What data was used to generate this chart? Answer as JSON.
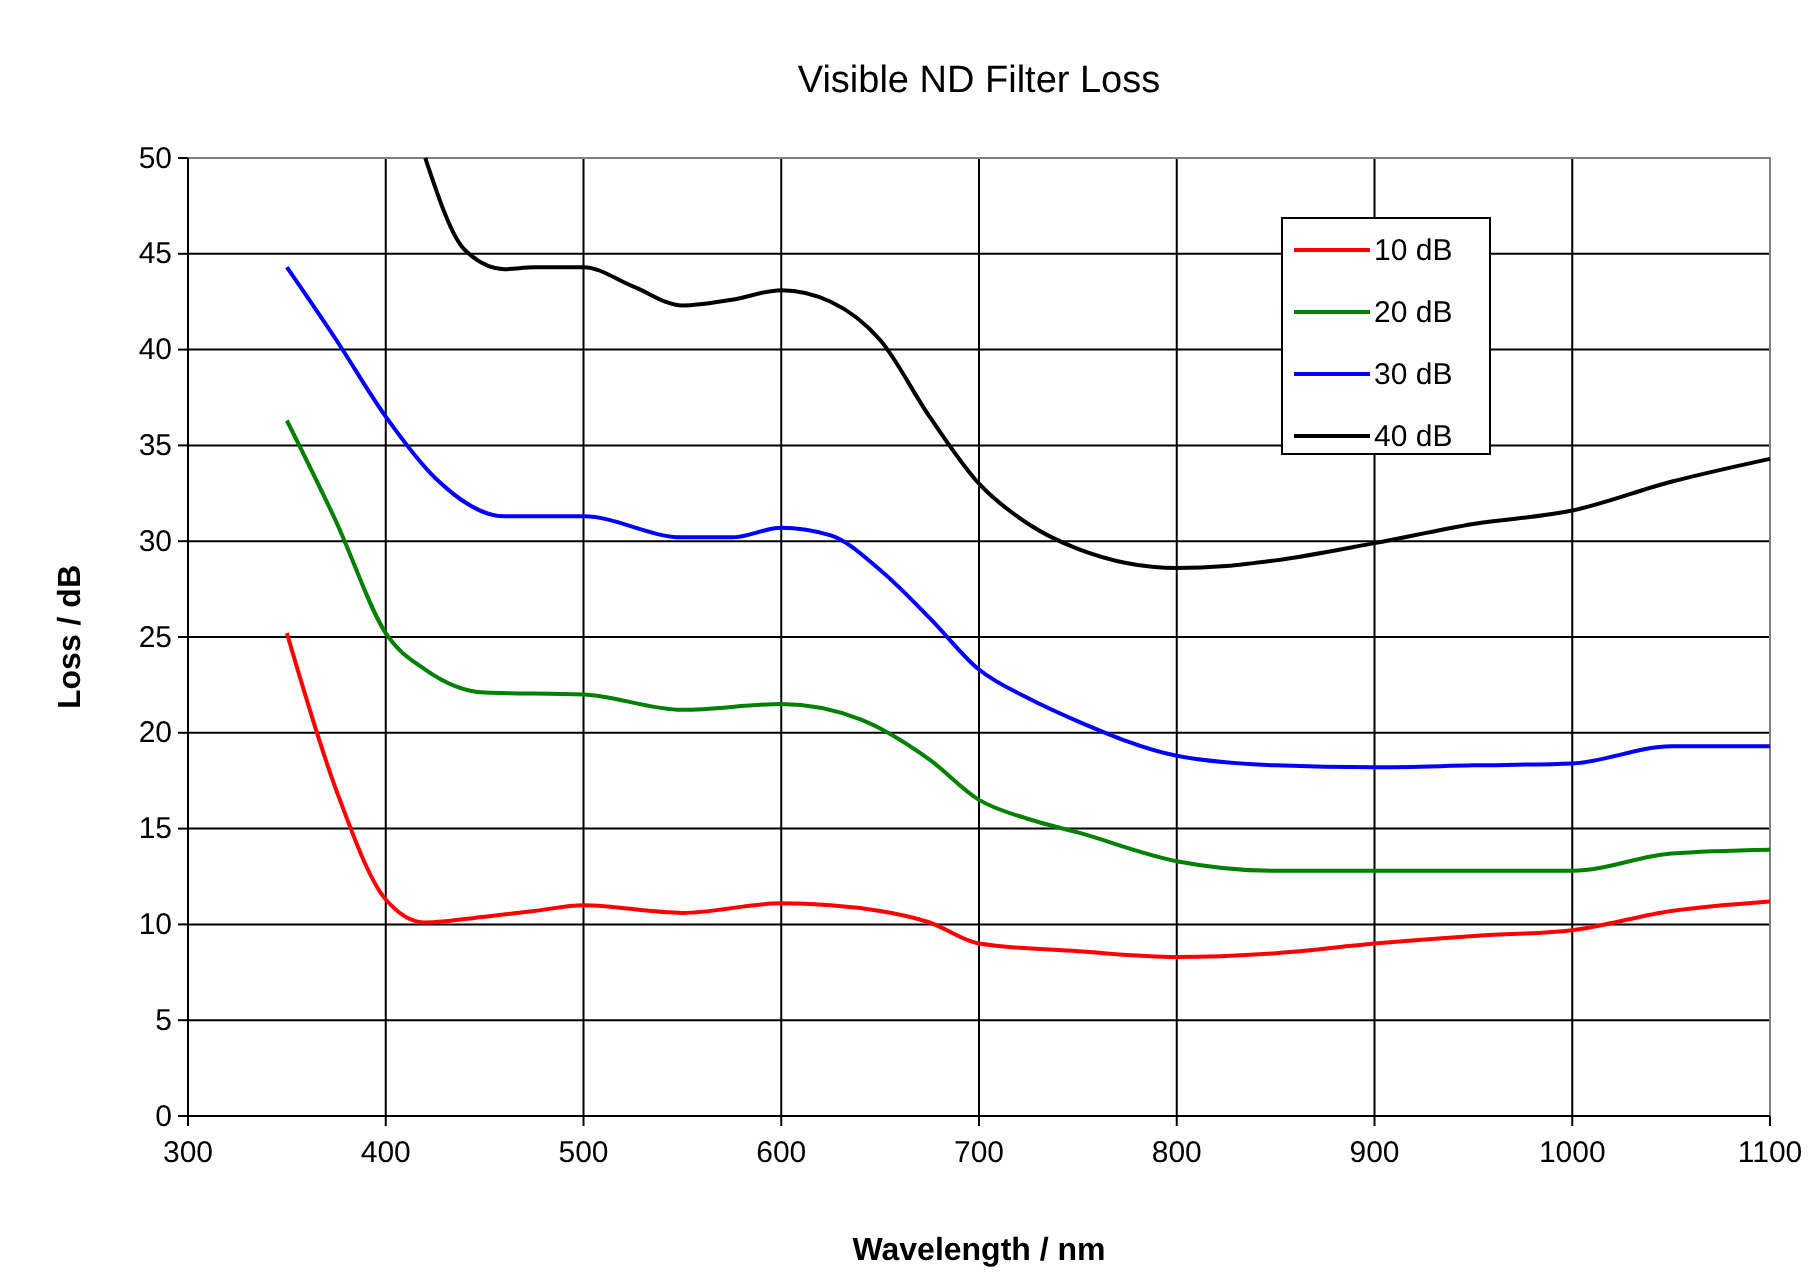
{
  "chart_data": {
    "type": "line",
    "title": "Visible ND Filter Loss",
    "xlabel": "Wavelength / nm",
    "ylabel": "Loss / dB",
    "xlim": [
      300,
      1100
    ],
    "xticks": [
      300,
      400,
      500,
      600,
      700,
      800,
      900,
      1000,
      1100
    ],
    "ylim": [
      0,
      50
    ],
    "yticks": [
      0,
      5,
      10,
      15,
      20,
      25,
      30,
      35,
      40,
      45,
      50
    ],
    "grid": true,
    "legend": "top right",
    "marker": "none",
    "line_style": "solid",
    "series": [
      {
        "name": "10 dB",
        "color": "#ff0000",
        "x": [
          350,
          375,
          400,
          420,
          450,
          475,
          500,
          550,
          600,
          650,
          675,
          700,
          750,
          800,
          850,
          900,
          950,
          1000,
          1050,
          1100
        ],
        "values": [
          25.2,
          17,
          11.3,
          10.1,
          10.4,
          10.7,
          11,
          10.6,
          11.1,
          10.7,
          10.1,
          9.0,
          8.6,
          8.3,
          8.5,
          9.0,
          9.4,
          9.7,
          10.7,
          11.2
        ]
      },
      {
        "name": "20 dB",
        "color": "#008000",
        "x": [
          350,
          375,
          400,
          420,
          450,
          500,
          550,
          600,
          640,
          675,
          700,
          725,
          750,
          800,
          850,
          900,
          1000,
          1050,
          1100
        ],
        "values": [
          36.3,
          31,
          25.2,
          23.3,
          22.1,
          22,
          21.2,
          21.5,
          20.7,
          18.6,
          16.5,
          15.5,
          14.8,
          13.3,
          12.8,
          12.8,
          12.8,
          13.7,
          13.9
        ]
      },
      {
        "name": "30 dB",
        "color": "#0000ff",
        "x": [
          350,
          375,
          400,
          425,
          460,
          500,
          550,
          575,
          600,
          625,
          650,
          675,
          700,
          725,
          750,
          800,
          850,
          900,
          950,
          1000,
          1050,
          1100
        ],
        "values": [
          44.3,
          40.5,
          36.5,
          33.3,
          31.3,
          31.3,
          30.2,
          30.2,
          30.7,
          30.3,
          28.5,
          26,
          23.3,
          21.8,
          20.6,
          18.8,
          18.3,
          18.2,
          18.3,
          18.4,
          19.3,
          19.3
        ]
      },
      {
        "name": "40 dB",
        "color": "#000000",
        "x": [
          420,
          440,
          460,
          475,
          500,
          525,
          550,
          575,
          600,
          625,
          650,
          675,
          700,
          725,
          750,
          800,
          825,
          850,
          900,
          950,
          1000,
          1050,
          1100
        ],
        "values": [
          50,
          45.2,
          44.2,
          44.3,
          44.3,
          43.3,
          42.3,
          42.6,
          43.1,
          42.5,
          40.5,
          36.5,
          33,
          30.9,
          29.6,
          28.6,
          28.7,
          29.0,
          29.9,
          30.9,
          31.6,
          33.1,
          34.3
        ]
      }
    ]
  }
}
